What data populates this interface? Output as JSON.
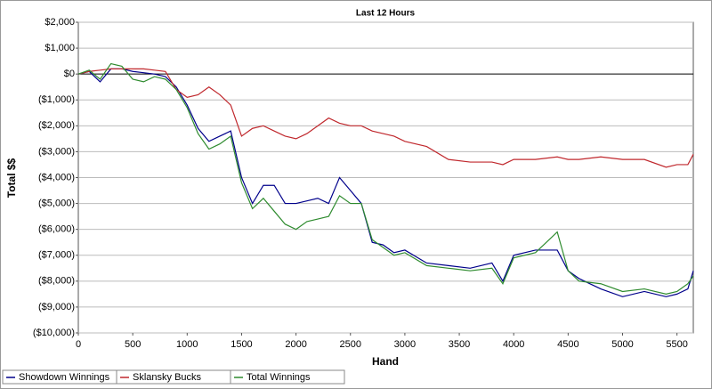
{
  "chart_data": {
    "type": "line",
    "title": "Last 12 Hours",
    "x_label": "Hand",
    "y_label": "Total $$",
    "x": [
      0,
      100,
      200,
      300,
      400,
      500,
      600,
      700,
      800,
      900,
      1000,
      1100,
      1200,
      1300,
      1400,
      1500,
      1600,
      1700,
      1800,
      1900,
      2000,
      2100,
      2200,
      2300,
      2400,
      2500,
      2600,
      2700,
      2800,
      2900,
      3000,
      3200,
      3400,
      3600,
      3800,
      3900,
      4000,
      4200,
      4400,
      4500,
      4600,
      4800,
      5000,
      5200,
      5400,
      5500,
      5600,
      5650
    ],
    "series": [
      {
        "name": "Showdown Winnings",
        "color": "#00008b",
        "values": [
          0,
          100,
          -300,
          200,
          200,
          100,
          50,
          0,
          -100,
          -500,
          -1200,
          -2100,
          -2600,
          -2400,
          -2200,
          -4000,
          -5000,
          -4300,
          -4300,
          -5000,
          -5000,
          -4900,
          -4800,
          -5000,
          -4000,
          -4500,
          -5000,
          -6500,
          -6600,
          -6900,
          -6800,
          -7300,
          -7400,
          -7500,
          -7300,
          -8000,
          -7000,
          -6800,
          -6800,
          -7600,
          -7900,
          -8300,
          -8600,
          -8400,
          -8600,
          -8500,
          -8300,
          -7600
        ]
      },
      {
        "name": "Sklansky Bucks",
        "color": "#c0282d",
        "values": [
          0,
          100,
          150,
          200,
          200,
          200,
          200,
          150,
          100,
          -600,
          -900,
          -800,
          -500,
          -800,
          -1200,
          -2400,
          -2100,
          -2000,
          -2200,
          -2400,
          -2500,
          -2300,
          -2000,
          -1700,
          -1900,
          -2000,
          -2000,
          -2200,
          -2300,
          -2400,
          -2600,
          -2800,
          -3300,
          -3400,
          -3400,
          -3500,
          -3300,
          -3300,
          -3200,
          -3300,
          -3300,
          -3200,
          -3300,
          -3300,
          -3600,
          -3500,
          -3500,
          -3100
        ]
      },
      {
        "name": "Total Winnings",
        "color": "#2e8b2e",
        "values": [
          0,
          150,
          -200,
          400,
          300,
          -200,
          -300,
          -100,
          -200,
          -600,
          -1300,
          -2300,
          -2900,
          -2700,
          -2400,
          -4200,
          -5200,
          -4800,
          -5300,
          -5800,
          -6000,
          -5700,
          -5600,
          -5500,
          -4700,
          -5000,
          -5000,
          -6400,
          -6700,
          -7000,
          -6900,
          -7400,
          -7500,
          -7600,
          -7500,
          -8100,
          -7100,
          -6900,
          -6100,
          -7600,
          -8000,
          -8100,
          -8400,
          -8300,
          -8500,
          -8400,
          -8100,
          -7800
        ]
      }
    ],
    "xlim": [
      0,
      5650
    ],
    "xticks": [
      0,
      500,
      1000,
      1500,
      2000,
      2500,
      3000,
      3500,
      4000,
      4500,
      5000,
      5500
    ],
    "ylim": [
      -10000,
      2000
    ],
    "yticks": [
      {
        "value": 2000,
        "label": "$2,000"
      },
      {
        "value": 1000,
        "label": "$1,000"
      },
      {
        "value": 0,
        "label": "$0"
      },
      {
        "value": -1000,
        "label": "($1,000)"
      },
      {
        "value": -2000,
        "label": "($2,000)"
      },
      {
        "value": -3000,
        "label": "($3,000)"
      },
      {
        "value": -4000,
        "label": "($4,000)"
      },
      {
        "value": -5000,
        "label": "($5,000)"
      },
      {
        "value": -6000,
        "label": "($6,000)"
      },
      {
        "value": -7000,
        "label": "($7,000)"
      },
      {
        "value": -8000,
        "label": "($8,000)"
      },
      {
        "value": -9000,
        "label": "($9,000)"
      },
      {
        "value": -10000,
        "label": "($10,000)"
      }
    ],
    "grid": true,
    "legend": "bottom"
  }
}
